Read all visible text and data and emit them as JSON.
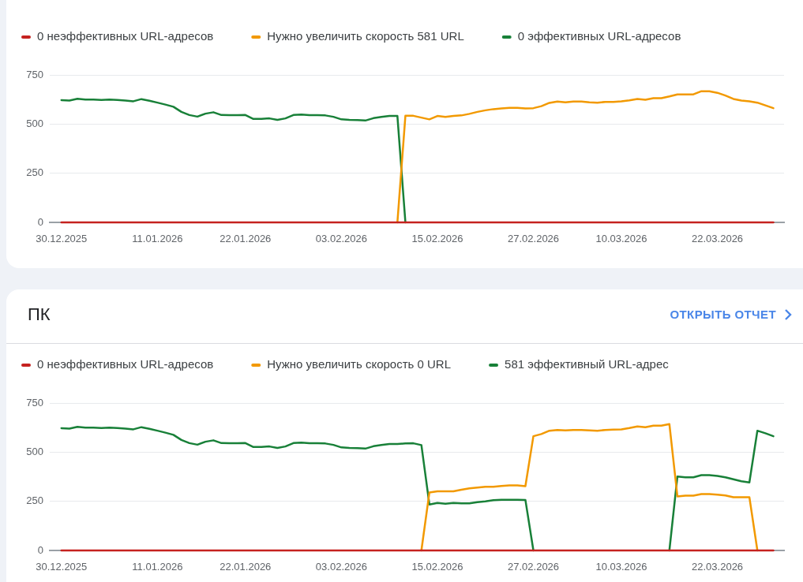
{
  "chart_data": [
    {
      "type": "line",
      "x": [
        "2025-12-30",
        "2025-12-31",
        "2026-01-01",
        "2026-01-02",
        "2026-01-03",
        "2026-01-04",
        "2026-01-05",
        "2026-01-06",
        "2026-01-07",
        "2026-01-08",
        "2026-01-09",
        "2026-01-10",
        "2026-01-11",
        "2026-01-12",
        "2026-01-13",
        "2026-01-14",
        "2026-01-15",
        "2026-01-16",
        "2026-01-17",
        "2026-01-18",
        "2026-01-19",
        "2026-01-20",
        "2026-01-21",
        "2026-01-22",
        "2026-01-23",
        "2026-01-24",
        "2026-01-25",
        "2026-01-26",
        "2026-01-27",
        "2026-01-28",
        "2026-01-29",
        "2026-01-30",
        "2026-01-31",
        "2026-02-01",
        "2026-02-02",
        "2026-02-03",
        "2026-02-04",
        "2026-02-05",
        "2026-02-06",
        "2026-02-07",
        "2026-02-08",
        "2026-02-09",
        "2026-02-10",
        "2026-02-11",
        "2026-02-12",
        "2026-02-13",
        "2026-02-14",
        "2026-02-15",
        "2026-02-16",
        "2026-02-17",
        "2026-02-18",
        "2026-02-19",
        "2026-02-20",
        "2026-02-21",
        "2026-02-22",
        "2026-02-23",
        "2026-02-24",
        "2026-02-25",
        "2026-02-26",
        "2026-02-27",
        "2026-02-28",
        "2026-03-01",
        "2026-03-02",
        "2026-03-03",
        "2026-03-04",
        "2026-03-05",
        "2026-03-06",
        "2026-03-07",
        "2026-03-08",
        "2026-03-09",
        "2026-03-10",
        "2026-03-11",
        "2026-03-12",
        "2026-03-13",
        "2026-03-14",
        "2026-03-15",
        "2026-03-16",
        "2026-03-17",
        "2026-03-18",
        "2026-03-19",
        "2026-03-20",
        "2026-03-21",
        "2026-03-22",
        "2026-03-23",
        "2026-03-24",
        "2026-03-25",
        "2026-03-26",
        "2026-03-27",
        "2026-03-28",
        "2026-03-29"
      ],
      "series": [
        {
          "name": "0 неэффективных URL-адресов",
          "color": "#c5221f",
          "values": [
            0,
            0,
            0,
            0,
            0,
            0,
            0,
            0,
            0,
            0,
            0,
            0,
            0,
            0,
            0,
            0,
            0,
            0,
            0,
            0,
            0,
            0,
            0,
            0,
            0,
            0,
            0,
            0,
            0,
            0,
            0,
            0,
            0,
            0,
            0,
            0,
            0,
            0,
            0,
            0,
            0,
            0,
            0,
            0,
            0,
            0,
            0,
            0,
            0,
            0,
            0,
            0,
            0,
            0,
            0,
            0,
            0,
            0,
            0,
            0,
            0,
            0,
            0,
            0,
            0,
            0,
            0,
            0,
            0,
            0,
            0,
            0,
            0,
            0,
            0,
            0,
            0,
            0,
            0,
            0,
            0,
            0,
            0,
            0,
            0,
            0,
            0,
            0,
            0,
            0
          ]
        },
        {
          "name": "Нужно увеличить скорость 581 URL",
          "color": "#f29900",
          "values": [
            null,
            null,
            null,
            null,
            null,
            null,
            null,
            null,
            null,
            null,
            null,
            null,
            null,
            null,
            null,
            null,
            null,
            null,
            null,
            null,
            null,
            null,
            null,
            null,
            null,
            null,
            null,
            null,
            null,
            null,
            null,
            null,
            null,
            null,
            null,
            null,
            null,
            null,
            null,
            null,
            null,
            null,
            0,
            542,
            542,
            533,
            524,
            541,
            536,
            541,
            544,
            552,
            562,
            570,
            576,
            580,
            583,
            583,
            580,
            581,
            591,
            608,
            615,
            611,
            615,
            615,
            611,
            609,
            613,
            613,
            616,
            621,
            628,
            624,
            632,
            632,
            641,
            651,
            651,
            651,
            667,
            667,
            659,
            645,
            628,
            620,
            616,
            609,
            595,
            581
          ]
        },
        {
          "name": "0 эффективных URL-адресов",
          "color": "#188038",
          "values": [
            622,
            620,
            629,
            625,
            625,
            623,
            625,
            623,
            620,
            616,
            627,
            619,
            609,
            599,
            588,
            562,
            546,
            538,
            553,
            560,
            546,
            545,
            545,
            546,
            526,
            526,
            529,
            521,
            529,
            546,
            548,
            545,
            545,
            544,
            537,
            524,
            521,
            520,
            518,
            530,
            536,
            541,
            541,
            0,
            null,
            null,
            null,
            null,
            null,
            null,
            null,
            null,
            null,
            null,
            null,
            null,
            null,
            null,
            null,
            null,
            null,
            null,
            null,
            null,
            null,
            null,
            null,
            null,
            null,
            null,
            null,
            null,
            null,
            null,
            null,
            null,
            null,
            null,
            null,
            null,
            null,
            null,
            null,
            null,
            null,
            null,
            null,
            null,
            null,
            null
          ]
        }
      ],
      "xlim": [
        "2025-12-28T13:00",
        "2026-03-30T08:00"
      ],
      "xticks": [
        {
          "value": "2025-12-30",
          "label": "30.12.2025"
        },
        {
          "value": "2026-01-11",
          "label": "11.01.2026"
        },
        {
          "value": "2026-01-22",
          "label": "22.01.2026"
        },
        {
          "value": "2026-02-03",
          "label": "03.02.2026"
        },
        {
          "value": "2026-02-15",
          "label": "15.02.2026"
        },
        {
          "value": "2026-02-27",
          "label": "27.02.2026"
        },
        {
          "value": "2026-03-10",
          "label": "10.03.2026"
        },
        {
          "value": "2026-03-22",
          "label": "22.03.2026"
        }
      ],
      "ylim": [
        0,
        750
      ],
      "yticks": [
        0,
        250,
        500,
        750
      ],
      "grid": "y",
      "legend": "top left"
    },
    {
      "type": "line",
      "title": "ПК",
      "annotations": [
        "ОТКРЫТЬ ОТЧЕТ"
      ],
      "x": [
        "2025-12-30",
        "2025-12-31",
        "2026-01-01",
        "2026-01-02",
        "2026-01-03",
        "2026-01-04",
        "2026-01-05",
        "2026-01-06",
        "2026-01-07",
        "2026-01-08",
        "2026-01-09",
        "2026-01-10",
        "2026-01-11",
        "2026-01-12",
        "2026-01-13",
        "2026-01-14",
        "2026-01-15",
        "2026-01-16",
        "2026-01-17",
        "2026-01-18",
        "2026-01-19",
        "2026-01-20",
        "2026-01-21",
        "2026-01-22",
        "2026-01-23",
        "2026-01-24",
        "2026-01-25",
        "2026-01-26",
        "2026-01-27",
        "2026-01-28",
        "2026-01-29",
        "2026-01-30",
        "2026-01-31",
        "2026-02-01",
        "2026-02-02",
        "2026-02-03",
        "2026-02-04",
        "2026-02-05",
        "2026-02-06",
        "2026-02-07",
        "2026-02-08",
        "2026-02-09",
        "2026-02-10",
        "2026-02-11",
        "2026-02-12",
        "2026-02-13",
        "2026-02-14",
        "2026-02-15",
        "2026-02-16",
        "2026-02-17",
        "2026-02-18",
        "2026-02-19",
        "2026-02-20",
        "2026-02-21",
        "2026-02-22",
        "2026-02-23",
        "2026-02-24",
        "2026-02-25",
        "2026-02-26",
        "2026-02-27",
        "2026-02-28",
        "2026-03-01",
        "2026-03-02",
        "2026-03-03",
        "2026-03-04",
        "2026-03-05",
        "2026-03-06",
        "2026-03-07",
        "2026-03-08",
        "2026-03-09",
        "2026-03-10",
        "2026-03-11",
        "2026-03-12",
        "2026-03-13",
        "2026-03-14",
        "2026-03-15",
        "2026-03-16",
        "2026-03-17",
        "2026-03-18",
        "2026-03-19",
        "2026-03-20",
        "2026-03-21",
        "2026-03-22",
        "2026-03-23",
        "2026-03-24",
        "2026-03-25",
        "2026-03-26",
        "2026-03-27",
        "2026-03-28",
        "2026-03-29"
      ],
      "series": [
        {
          "name": "0 неэффективных URL-адресов",
          "color": "#c5221f",
          "values": [
            0,
            0,
            0,
            0,
            0,
            0,
            0,
            0,
            0,
            0,
            0,
            0,
            0,
            0,
            0,
            0,
            0,
            0,
            0,
            0,
            0,
            0,
            0,
            0,
            0,
            0,
            0,
            0,
            0,
            0,
            0,
            0,
            0,
            0,
            0,
            0,
            0,
            0,
            0,
            0,
            0,
            0,
            0,
            0,
            0,
            0,
            0,
            0,
            0,
            0,
            0,
            0,
            0,
            0,
            0,
            0,
            0,
            0,
            0,
            0,
            0,
            0,
            0,
            0,
            0,
            0,
            0,
            0,
            0,
            0,
            0,
            0,
            0,
            0,
            0,
            0,
            0,
            0,
            0,
            0,
            0,
            0,
            0,
            0,
            0,
            0,
            0,
            0,
            0,
            0
          ]
        },
        {
          "name": "Нужно увеличить скорость 0 URL",
          "color": "#f29900",
          "values": [
            null,
            null,
            null,
            null,
            null,
            null,
            null,
            null,
            null,
            null,
            null,
            null,
            null,
            null,
            null,
            null,
            null,
            null,
            null,
            null,
            null,
            null,
            null,
            null,
            null,
            null,
            null,
            null,
            null,
            null,
            null,
            null,
            null,
            null,
            null,
            null,
            null,
            null,
            null,
            null,
            null,
            null,
            null,
            null,
            null,
            0,
            295,
            301,
            301,
            301,
            309,
            316,
            320,
            324,
            324,
            328,
            331,
            331,
            327,
            581,
            592,
            609,
            613,
            611,
            613,
            613,
            611,
            609,
            613,
            615,
            616,
            623,
            631,
            627,
            635,
            635,
            643,
            275,
            279,
            279,
            287,
            287,
            284,
            280,
            271,
            271,
            271,
            0,
            null,
            null
          ]
        },
        {
          "name": "581 эффективный URL-адрес",
          "color": "#188038",
          "values": [
            622,
            620,
            629,
            625,
            625,
            623,
            625,
            623,
            620,
            616,
            627,
            619,
            609,
            599,
            588,
            562,
            546,
            538,
            553,
            560,
            546,
            545,
            545,
            546,
            526,
            526,
            529,
            521,
            529,
            546,
            548,
            545,
            545,
            544,
            537,
            524,
            521,
            520,
            518,
            530,
            536,
            541,
            541,
            544,
            545,
            536,
            234,
            242,
            238,
            242,
            240,
            240,
            246,
            250,
            256,
            258,
            258,
            258,
            257,
            0,
            null,
            null,
            null,
            null,
            null,
            null,
            null,
            null,
            null,
            null,
            null,
            null,
            null,
            null,
            null,
            null,
            0,
            376,
            372,
            372,
            383,
            383,
            379,
            372,
            362,
            352,
            346,
            609,
            596,
            581
          ]
        }
      ],
      "xlim": [
        "2025-12-28T13:00",
        "2026-03-30T08:00"
      ],
      "xticks": [
        {
          "value": "2025-12-30",
          "label": "30.12.2025"
        },
        {
          "value": "2026-01-11",
          "label": "11.01.2026"
        },
        {
          "value": "2026-01-22",
          "label": "22.01.2026"
        },
        {
          "value": "2026-02-03",
          "label": "03.02.2026"
        },
        {
          "value": "2026-02-15",
          "label": "15.02.2026"
        },
        {
          "value": "2026-02-27",
          "label": "27.02.2026"
        },
        {
          "value": "2026-03-10",
          "label": "10.03.2026"
        },
        {
          "value": "2026-03-22",
          "label": "22.03.2026"
        }
      ],
      "ylim": [
        0,
        750
      ],
      "yticks": [
        0,
        250,
        500,
        750
      ],
      "grid": "y",
      "legend": "top left"
    }
  ]
}
